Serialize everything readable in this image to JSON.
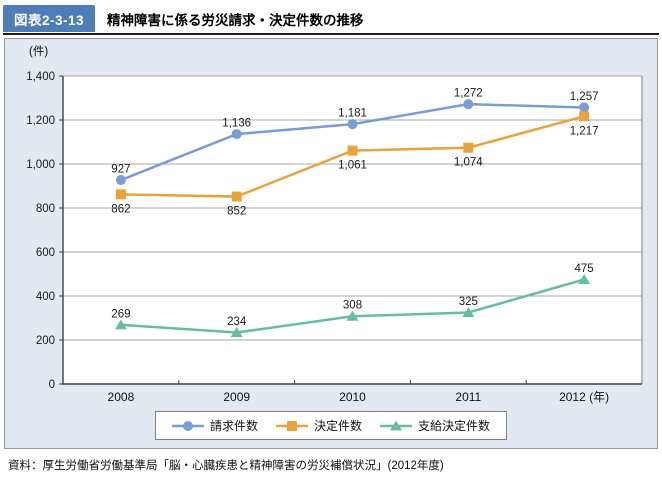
{
  "header": {
    "tag": "図表2-3-13",
    "tag_bg": "#4e7db8",
    "title": "精神障害に係る労災請求・決定件数の推移"
  },
  "panel_bg": "#e3e9f0",
  "unit_label": "(件)",
  "chart_data": {
    "type": "line",
    "categories": [
      "2008",
      "2009",
      "2010",
      "2011",
      "2012"
    ],
    "x_axis_suffix": "(年)",
    "series": [
      {
        "name": "請求件数",
        "marker": "circle",
        "color": "#7b9bd4",
        "values": [
          927,
          1136,
          1181,
          1272,
          1257
        ],
        "labels": [
          "927",
          "1,136",
          "1,181",
          "1,272",
          "1,257"
        ],
        "label_pos": "above"
      },
      {
        "name": "決定件数",
        "marker": "square",
        "color": "#e8a33c",
        "values": [
          862,
          852,
          1061,
          1074,
          1217
        ],
        "labels": [
          "862",
          "852",
          "1,061",
          "1,074",
          "1,217"
        ],
        "label_pos": "below"
      },
      {
        "name": "支給決定件数",
        "marker": "triangle",
        "color": "#67bda4",
        "values": [
          269,
          234,
          308,
          325,
          475
        ],
        "labels": [
          "269",
          "234",
          "308",
          "325",
          "475"
        ],
        "label_pos": "above"
      }
    ],
    "ylim": [
      0,
      1400
    ],
    "ytick_step": 200,
    "ytick_labels": [
      "0",
      "200",
      "400",
      "600",
      "800",
      "1,000",
      "1,200",
      "1,400"
    ],
    "grid": true,
    "legend_position": "bottom"
  },
  "footer": {
    "source": "資料：厚生労働省労働基準局「脳・心臓疾患と精神障害の労災補償状況」(2012年度)"
  }
}
